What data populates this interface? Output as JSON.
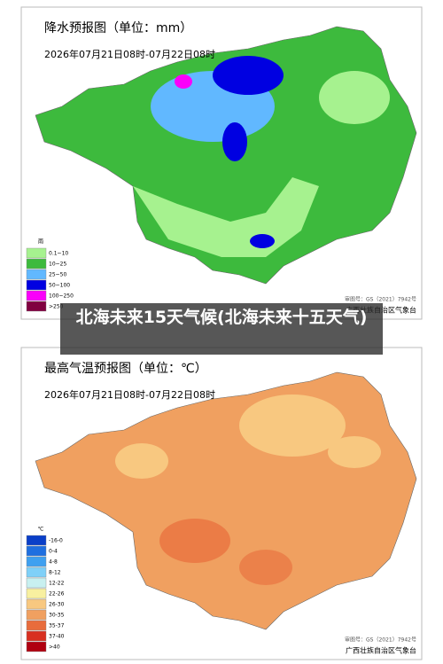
{
  "panels": [
    {
      "title": "降水预报图（单位：mm）",
      "period": "2026年07月21日08时-07月22日08时",
      "legend": {
        "header": "雨",
        "items": [
          {
            "label": "0.1~10",
            "color": "#a6f28f"
          },
          {
            "label": "10~25",
            "color": "#3dba3d"
          },
          {
            "label": "25~50",
            "color": "#61b8ff"
          },
          {
            "label": "50~100",
            "color": "#0000e1"
          },
          {
            "label": "100~250",
            "color": "#fa00fa"
          },
          {
            "label": ">250",
            "color": "#800040"
          }
        ]
      },
      "review_no": "审图号：GS（2021）7942号",
      "issuer": "广西壮族自治区气象台"
    },
    {
      "title": "最高气温预报图（单位：℃）",
      "period": "2026年07月21日08时-07月22日08时",
      "legend": {
        "header": "℃",
        "items": [
          {
            "label": "-16-0",
            "color": "#0a3fc8"
          },
          {
            "label": "0-4",
            "color": "#1f6fe0"
          },
          {
            "label": "4-8",
            "color": "#3fa0f0"
          },
          {
            "label": "8-12",
            "color": "#7fd0f8"
          },
          {
            "label": "12-22",
            "color": "#c8f0f0"
          },
          {
            "label": "22-26",
            "color": "#f8f0a0"
          },
          {
            "label": "26-30",
            "color": "#f8c880"
          },
          {
            "label": "30-35",
            "color": "#f0a060"
          },
          {
            "label": "35-37",
            "color": "#e86c3c"
          },
          {
            "label": "37-40",
            "color": "#d83020"
          },
          {
            "label": ">40",
            "color": "#b00010"
          }
        ]
      },
      "review_no": "审图号：GS（2021）7942号",
      "issuer": "广西壮族自治区气象台"
    }
  ],
  "caption": "北海未来15天气候(北海未来十五天气)"
}
